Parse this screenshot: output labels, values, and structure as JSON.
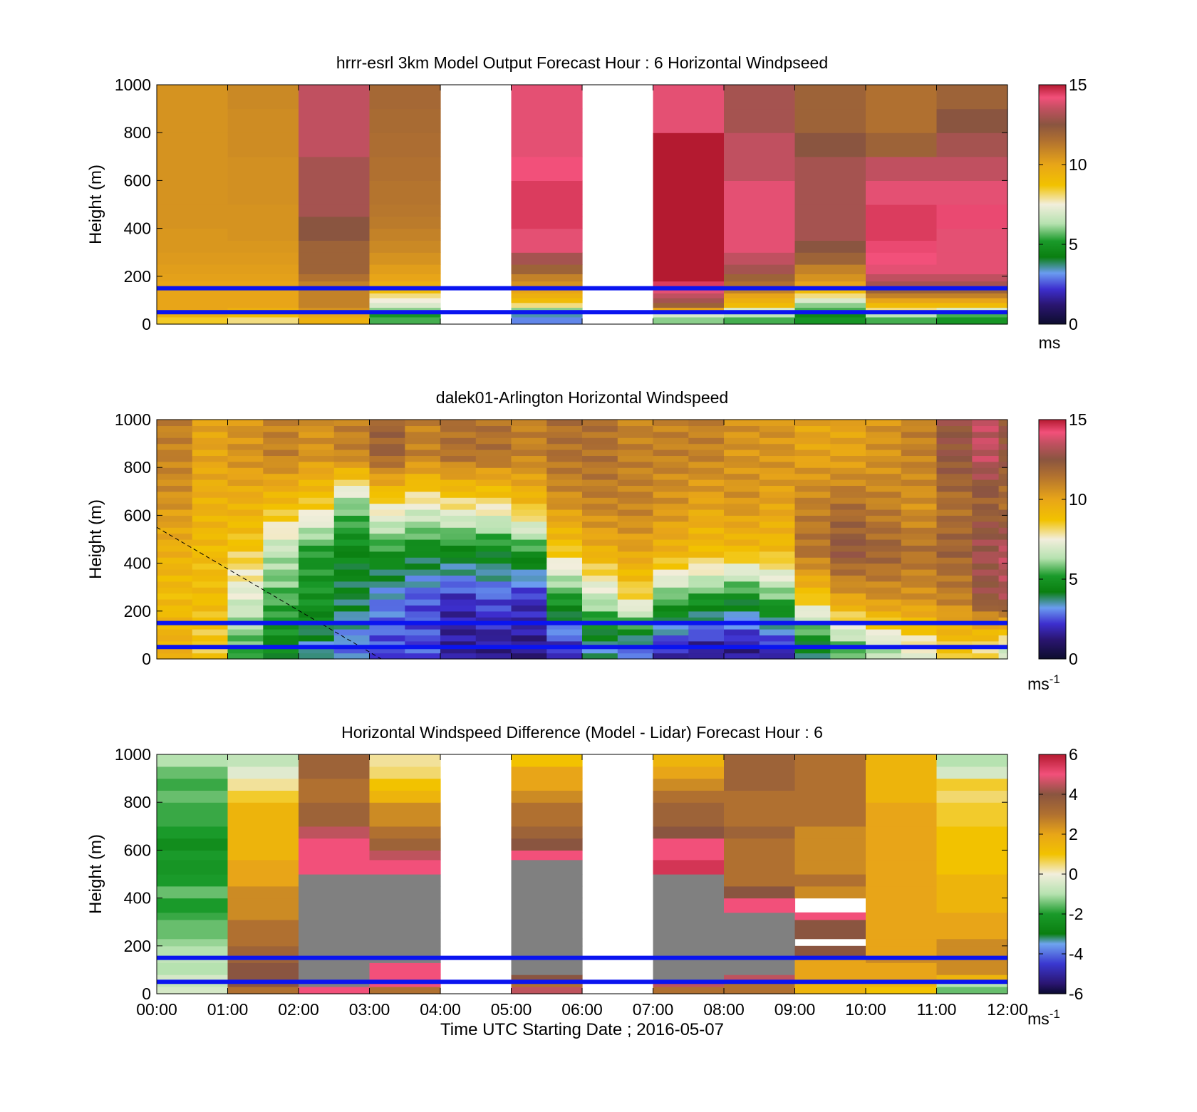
{
  "chart_data": [
    {
      "type": "heatmap",
      "title": "hrrr-esrl 3km Model Output   Forecast Hour : 6 Horizontal Windpseed",
      "ylabel": "Height (m)",
      "yticks": [
        "0",
        "200",
        "400",
        "600",
        "800",
        "1000"
      ],
      "ylim": [
        0,
        1000
      ],
      "xlim": [
        "00:00",
        "12:00"
      ],
      "colorbar": {
        "ticks": [
          "0",
          "5",
          "10",
          "15"
        ],
        "range": [
          0,
          15
        ],
        "unit": "ms",
        "unit_sup": ""
      },
      "reference_lines_m": [
        50,
        150
      ],
      "data_level_edges_m": [
        0,
        30,
        50,
        70,
        90,
        110,
        130,
        150,
        180,
        210,
        250,
        300,
        350,
        400,
        450,
        500,
        600,
        700,
        800,
        900,
        1000
      ],
      "columns": [
        {
          "time": "00:00",
          "values": [
            8.5,
            9.5,
            10,
            10,
            10,
            10,
            10,
            10,
            10.1,
            10.2,
            10.3,
            10.4,
            10.4,
            10.5,
            10.5,
            10.5,
            10.5,
            10.5,
            10.5,
            10.5
          ]
        },
        {
          "time": "01:00",
          "values": [
            8,
            9,
            9.5,
            10,
            10,
            10,
            10,
            10,
            10.1,
            10.2,
            10.3,
            10.4,
            10.5,
            10.5,
            10.5,
            10.6,
            10.6,
            10.7,
            10.7,
            10.8
          ]
        },
        {
          "time": "02:00",
          "values": [
            9.5,
            10,
            10.5,
            11,
            11,
            11,
            11,
            11,
            11.5,
            12,
            12,
            12,
            12.5,
            12.5,
            13,
            13,
            13,
            13.5,
            13.5,
            13.5
          ]
        },
        {
          "time": "03:00",
          "values": [
            5.5,
            5,
            6,
            7,
            7.5,
            8,
            9,
            9.5,
            10,
            10.2,
            10.5,
            10.8,
            11,
            11.2,
            11.3,
            11.4,
            11.5,
            11.6,
            11.7,
            11.8
          ]
        },
        {
          "time": "04:00",
          "values": [
            null,
            null,
            null,
            null,
            null,
            null,
            null,
            null,
            null,
            null,
            null,
            null,
            null,
            null,
            null,
            null,
            null,
            null,
            null,
            null
          ]
        },
        {
          "time": "05:00",
          "values": [
            3,
            3.5,
            6,
            8,
            9,
            9.5,
            10,
            10.5,
            11,
            12,
            13,
            14,
            14,
            14.5,
            14.5,
            14.5,
            14.2,
            14,
            14,
            14
          ]
        },
        {
          "time": "06:00",
          "values": [
            null,
            null,
            null,
            null,
            null,
            null,
            null,
            null,
            null,
            null,
            null,
            null,
            null,
            null,
            null,
            null,
            null,
            null,
            null,
            null
          ]
        },
        {
          "time": "07:00",
          "values": [
            6,
            7,
            10,
            12,
            13,
            13.5,
            14,
            14.5,
            15,
            15.5,
            15.5,
            15.5,
            15.5,
            15.5,
            15.5,
            15.5,
            15.5,
            15,
            14,
            14
          ]
        },
        {
          "time": "08:00",
          "values": [
            5.5,
            6.5,
            7,
            9,
            9.5,
            10,
            11,
            11.5,
            12,
            13,
            13.5,
            14,
            14,
            14,
            14,
            14,
            13.5,
            13.5,
            13,
            13
          ]
        },
        {
          "time": "09:00",
          "values": [
            5,
            4.5,
            5.5,
            6,
            7,
            8,
            9,
            10,
            10.5,
            11,
            12,
            12.5,
            13,
            13,
            13,
            13,
            13,
            12.5,
            12,
            12
          ]
        },
        {
          "time": "10:00",
          "values": [
            5.5,
            6.5,
            8,
            9,
            10,
            11,
            12,
            13,
            13.5,
            14,
            14.2,
            14.3,
            14.5,
            14.5,
            14.5,
            14,
            13.5,
            12,
            11.5,
            11.5
          ]
        },
        {
          "time": "11:00",
          "values": [
            5,
            5.5,
            7,
            9,
            10,
            11,
            12,
            13,
            13.5,
            14,
            14,
            14,
            14,
            14.3,
            14.3,
            14,
            13.5,
            13,
            12.5,
            12
          ]
        }
      ]
    },
    {
      "type": "heatmap",
      "title": "dalek01-Arlington  Horizontal Windspeed",
      "ylabel": "Height (m)",
      "yticks": [
        "0",
        "200",
        "400",
        "600",
        "800",
        "1000"
      ],
      "ylim": [
        0,
        1000
      ],
      "xlim": [
        "00:00",
        "12:00"
      ],
      "colorbar": {
        "ticks": [
          "0",
          "5",
          "10",
          "15"
        ],
        "range": [
          0,
          15
        ],
        "unit": "ms",
        "unit_sup": "-1"
      },
      "reference_lines_m": [
        50,
        150
      ],
      "time_hours": [
        0,
        0.5,
        1,
        1.5,
        2,
        2.5,
        3,
        3.5,
        4,
        4.5,
        5,
        5.5,
        6,
        6.5,
        7,
        7.5,
        8,
        8.5,
        9,
        9.5,
        10,
        10.5,
        11,
        11.5,
        11.875
      ],
      "profile_heights_m": [
        50,
        250,
        450,
        650,
        850
      ],
      "profiles": [
        {
          "hour": 0.0,
          "wind_ms": [
            9.5,
            9.0,
            9.5,
            10.5,
            11.0
          ]
        },
        {
          "hour": 0.5,
          "wind_ms": [
            8.5,
            9.0,
            9.0,
            9.5,
            10.0
          ]
        },
        {
          "hour": 1.0,
          "wind_ms": [
            5.5,
            7.0,
            8.5,
            9.5,
            10.5
          ]
        },
        {
          "hour": 1.5,
          "wind_ms": [
            4.5,
            5.5,
            6.5,
            9.0,
            11.0
          ]
        },
        {
          "hour": 2.0,
          "wind_ms": [
            3.5,
            5.0,
            5.0,
            8.5,
            10.5
          ]
        },
        {
          "hour": 2.5,
          "wind_ms": [
            3.0,
            4.0,
            4.5,
            6.0,
            11.0
          ]
        },
        {
          "hour": 3.0,
          "wind_ms": [
            2.5,
            3.0,
            5.0,
            8.0,
            12.0
          ]
        },
        {
          "hour": 3.5,
          "wind_ms": [
            2.5,
            2.5,
            4.5,
            7.5,
            11.0
          ]
        },
        {
          "hour": 4.0,
          "wind_ms": [
            1.5,
            2.0,
            4.5,
            8.0,
            11.5
          ]
        },
        {
          "hour": 4.5,
          "wind_ms": [
            1.5,
            2.5,
            4.5,
            8.0,
            11.5
          ]
        },
        {
          "hour": 5.0,
          "wind_ms": [
            1.5,
            2.0,
            5.0,
            9.0,
            11.0
          ]
        },
        {
          "hour": 5.5,
          "wind_ms": [
            2.0,
            5.0,
            8.5,
            10.5,
            11.5
          ]
        },
        {
          "hour": 6.0,
          "wind_ms": [
            3.5,
            6.5,
            9.5,
            11.0,
            11.5
          ]
        },
        {
          "hour": 6.5,
          "wind_ms": [
            3.0,
            8.0,
            10.0,
            11.0,
            11.0
          ]
        },
        {
          "hour": 7.0,
          "wind_ms": [
            2.0,
            5.5,
            9.5,
            10.5,
            11.0
          ]
        },
        {
          "hour": 7.5,
          "wind_ms": [
            1.5,
            5.0,
            9.0,
            10.0,
            11.0
          ]
        },
        {
          "hour": 8.0,
          "wind_ms": [
            1.5,
            4.5,
            9.0,
            10.5,
            10.5
          ]
        },
        {
          "hour": 8.5,
          "wind_ms": [
            2.0,
            5.5,
            9.0,
            10.0,
            10.5
          ]
        },
        {
          "hour": 9.0,
          "wind_ms": [
            4.0,
            8.5,
            11.5,
            11.0,
            10.0
          ]
        },
        {
          "hour": 9.5,
          "wind_ms": [
            5.5,
            10.0,
            12.5,
            11.5,
            10.0
          ]
        },
        {
          "hour": 10.0,
          "wind_ms": [
            6.5,
            10.5,
            12.0,
            11.0,
            10.5
          ]
        },
        {
          "hour": 10.5,
          "wind_ms": [
            7.5,
            10.5,
            11.5,
            10.5,
            11.0
          ]
        },
        {
          "hour": 11.0,
          "wind_ms": [
            8.5,
            11.0,
            12.0,
            11.5,
            12.5
          ]
        },
        {
          "hour": 11.5,
          "wind_ms": [
            8.0,
            12.5,
            13.0,
            12.0,
            13.5
          ]
        },
        {
          "hour": 11.875,
          "wind_ms": [
            7.0,
            13.0,
            13.5,
            11.5,
            12.5
          ]
        }
      ],
      "dashed_line": {
        "from": [
          "00:00",
          550
        ],
        "to": [
          "03:10",
          0
        ]
      }
    },
    {
      "type": "heatmap",
      "title": "Horizontal Windspeed Difference (Model - Lidar) Forecast Hour : 6",
      "ylabel": "Height (m)",
      "xlabel": "Time UTC  Starting Date ; 2016-05-07",
      "xticks": [
        "00:00",
        "01:00",
        "02:00",
        "03:00",
        "04:00",
        "05:00",
        "06:00",
        "07:00",
        "08:00",
        "09:00",
        "10:00",
        "11:00",
        "12:00"
      ],
      "yticks": [
        "0",
        "200",
        "400",
        "600",
        "800",
        "1000"
      ],
      "ylim": [
        0,
        1000
      ],
      "xlim": [
        "00:00",
        "12:00"
      ],
      "colorbar": {
        "ticks": [
          "-6",
          "-4",
          "-2",
          "0",
          "2",
          "4",
          "6"
        ],
        "range": [
          -6,
          6
        ],
        "unit": "ms",
        "unit_sup": "-1"
      },
      "reference_lines_m": [
        50,
        150
      ],
      "saturated_value_ms": -6,
      "data_level_edges_m": [
        0,
        30,
        50,
        80,
        130,
        150,
        200,
        230,
        310,
        340,
        400,
        450,
        500,
        560,
        600,
        650,
        700,
        800,
        850,
        900,
        950,
        1000
      ],
      "columns": [
        {
          "time": "00:00",
          "values": [
            -0.5,
            -0.8,
            -0.5,
            -1.0,
            -0.8,
            -1.0,
            -1.2,
            -1.5,
            -1.8,
            -2.0,
            -1.5,
            -2.0,
            -2.2,
            -2.0,
            -2.5,
            -2.0,
            -1.8,
            -1.5,
            -1.8,
            -1.5,
            -1.0
          ]
        },
        {
          "time": "01:00",
          "values": [
            3.0,
            4.0,
            4.0,
            4.0,
            3.5,
            3.5,
            3.0,
            3.0,
            2.5,
            2.5,
            2.5,
            2.0,
            2.0,
            1.5,
            1.5,
            1.5,
            1.5,
            0.8,
            0.3,
            -0.3,
            -0.8
          ]
        },
        {
          "time": "02:00",
          "values": [
            5.0,
            -6.0,
            -6.0,
            -6.0,
            -6.0,
            -6.0,
            -6.0,
            -6.0,
            -6.0,
            -6.0,
            -6.0,
            -6.0,
            5.0,
            5.0,
            5.0,
            4.5,
            3.5,
            3.0,
            3.0,
            3.5,
            3.5
          ]
        },
        {
          "time": "03:00",
          "values": [
            3.0,
            5.0,
            5.0,
            5.0,
            -6.0,
            -6.0,
            -6.0,
            -6.0,
            -6.0,
            -6.0,
            -6.0,
            -6.0,
            5.0,
            4.5,
            3.5,
            3.0,
            2.5,
            1.5,
            1.0,
            0.5,
            0.3
          ]
        },
        {
          "time": "04:00",
          "values": [
            null,
            null,
            null,
            null,
            null,
            null,
            null,
            null,
            null,
            null,
            null,
            null,
            null,
            null,
            null,
            null,
            null,
            null,
            null,
            null,
            null
          ]
        },
        {
          "time": "05:00",
          "values": [
            4.5,
            3.0,
            4.0,
            -6.0,
            -6.0,
            -6.0,
            -6.0,
            -6.0,
            -6.0,
            -6.0,
            -6.0,
            -6.0,
            -6.0,
            5.0,
            4.0,
            3.5,
            3.0,
            2.5,
            2.0,
            2.0,
            1.0
          ]
        },
        {
          "time": "06:00",
          "values": [
            null,
            null,
            null,
            null,
            null,
            null,
            null,
            null,
            null,
            null,
            null,
            null,
            null,
            null,
            null,
            null,
            null,
            null,
            null,
            null,
            null
          ]
        },
        {
          "time": "07:00",
          "values": [
            3.0,
            4.5,
            -6.0,
            -6.0,
            -6.0,
            -6.0,
            -6.0,
            -6.0,
            -6.0,
            -6.0,
            -6.0,
            -6.0,
            5.5,
            5.0,
            5.0,
            4.0,
            3.5,
            3.0,
            2.5,
            2.0,
            1.5
          ]
        },
        {
          "time": "08:00",
          "values": [
            3.0,
            3.0,
            4.5,
            -6.0,
            -6.0,
            -6.0,
            -6.0,
            -6.0,
            -6.0,
            5.0,
            4.0,
            3.0,
            3.0,
            3.0,
            3.0,
            3.5,
            3.0,
            3.0,
            3.5,
            3.5,
            3.5
          ]
        },
        {
          "time": "09:00",
          "values": [
            1.5,
            1.5,
            2.0,
            2.0,
            2.0,
            4.0,
            null,
            4.0,
            5.0,
            null,
            2.5,
            3.0,
            2.5,
            2.5,
            2.5,
            2.5,
            3.0,
            3.0,
            3.0,
            3.0,
            3.0
          ]
        },
        {
          "time": "10:00",
          "values": [
            1.0,
            1.5,
            2.0,
            2.0,
            2.5,
            2.0,
            2.0,
            2.0,
            2.0,
            2.0,
            2.0,
            2.0,
            2.0,
            2.0,
            2.0,
            2.0,
            2.0,
            1.5,
            1.5,
            1.5,
            1.5
          ]
        },
        {
          "time": "11:00",
          "values": [
            -1.5,
            -1.0,
            1.5,
            2.5,
            2.5,
            2.5,
            2.5,
            2.0,
            2.0,
            1.5,
            1.5,
            1.5,
            1.0,
            1.0,
            1.0,
            1.0,
            0.8,
            0.5,
            0.8,
            -0.5,
            -1.0
          ]
        }
      ]
    }
  ]
}
